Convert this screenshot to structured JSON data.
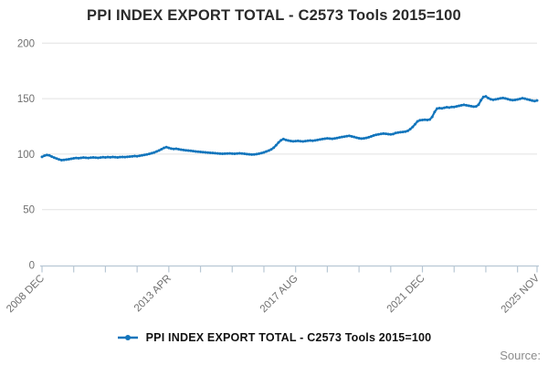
{
  "title": "PPI INDEX EXPORT TOTAL - C2573 Tools 2015=100",
  "legend": {
    "label": "PPI INDEX EXPORT TOTAL - C2573 Tools 2015=100",
    "marker": "line-dot"
  },
  "source_label": "Source:",
  "colors": {
    "line": "#1275bc",
    "grid": "#e2e2e2",
    "axis": "#b8c7d4",
    "tick_label": "#707070",
    "title": "#2b2b2b",
    "legend_text": "#111111",
    "source": "#8c8c8c"
  },
  "chart_data": {
    "type": "line",
    "title": "PPI INDEX EXPORT TOTAL - C2573 Tools 2015=100",
    "xlabel": "",
    "ylabel": "",
    "ylim": [
      0,
      200
    ],
    "y_ticks": [
      0,
      50,
      100,
      150,
      200
    ],
    "grid": "horizontal",
    "legend_position": "bottom-center",
    "x_start": "2008 DEC",
    "x_end": "2025 NOV",
    "months_total": 204,
    "x_tick_labels": [
      "2008 DEC",
      "2013 APR",
      "2017 AUG",
      "2021 DEC",
      "2025 NOV"
    ],
    "x_tick_label_indices": [
      0,
      52,
      104,
      156,
      203
    ],
    "minor_tick_step_months": 13,
    "series": [
      {
        "name": "PPI INDEX EXPORT TOTAL - C2573 Tools 2015=100",
        "values": [
          97.6,
          98.6,
          99.2,
          98.9,
          97.8,
          96.8,
          96.0,
          95.2,
          94.6,
          94.8,
          95.1,
          95.4,
          95.8,
          96.2,
          96.5,
          96.3,
          96.6,
          96.9,
          96.7,
          96.5,
          96.8,
          97.0,
          96.8,
          96.6,
          96.9,
          97.2,
          97.0,
          97.3,
          97.1,
          97.4,
          97.2,
          97.0,
          97.3,
          97.5,
          97.3,
          97.6,
          97.8,
          98.0,
          98.3,
          98.1,
          98.5,
          98.9,
          99.3,
          99.7,
          100.2,
          100.8,
          101.5,
          102.4,
          103.3,
          104.4,
          105.6,
          106.3,
          105.6,
          105.0,
          104.6,
          104.9,
          104.4,
          104.0,
          103.7,
          103.4,
          103.2,
          103.0,
          102.7,
          102.4,
          102.2,
          102.0,
          101.8,
          101.6,
          101.4,
          101.2,
          101.0,
          100.8,
          100.6,
          100.4,
          100.3,
          100.4,
          100.5,
          100.6,
          100.4,
          100.3,
          100.5,
          100.7,
          100.5,
          100.3,
          100.0,
          99.8,
          99.6,
          99.7,
          100.0,
          100.4,
          100.9,
          101.6,
          102.4,
          103.2,
          104.2,
          105.8,
          108.0,
          110.5,
          112.5,
          113.6,
          112.8,
          112.2,
          111.8,
          111.5,
          111.7,
          111.9,
          111.6,
          111.4,
          111.7,
          112.0,
          112.3,
          112.1,
          112.4,
          112.8,
          113.2,
          113.6,
          113.9,
          114.2,
          114.0,
          113.8,
          114.1,
          114.5,
          115.0,
          115.4,
          115.8,
          116.2,
          116.5,
          116.0,
          115.4,
          114.8,
          114.3,
          114.0,
          114.2,
          114.6,
          115.2,
          116.0,
          116.8,
          117.4,
          117.8,
          118.2,
          118.5,
          118.3,
          118.0,
          117.8,
          118.1,
          119.0,
          119.4,
          119.8,
          120.0,
          120.3,
          121.0,
          122.5,
          124.5,
          127.0,
          129.5,
          130.5,
          130.8,
          131.0,
          130.8,
          131.2,
          133.5,
          138.0,
          141.0,
          141.5,
          141.2,
          141.8,
          142.3,
          142.0,
          142.5,
          142.5,
          143.0,
          143.5,
          144.0,
          144.4,
          144.0,
          143.6,
          143.2,
          142.8,
          143.0,
          144.5,
          148.5,
          151.5,
          152.0,
          150.5,
          149.5,
          149.0,
          149.4,
          149.8,
          150.3,
          150.6,
          150.2,
          149.6,
          149.0,
          148.6,
          148.9,
          149.3,
          149.8,
          150.4,
          150.0,
          149.4,
          148.8,
          148.2,
          147.8,
          148.3
        ]
      }
    ]
  }
}
